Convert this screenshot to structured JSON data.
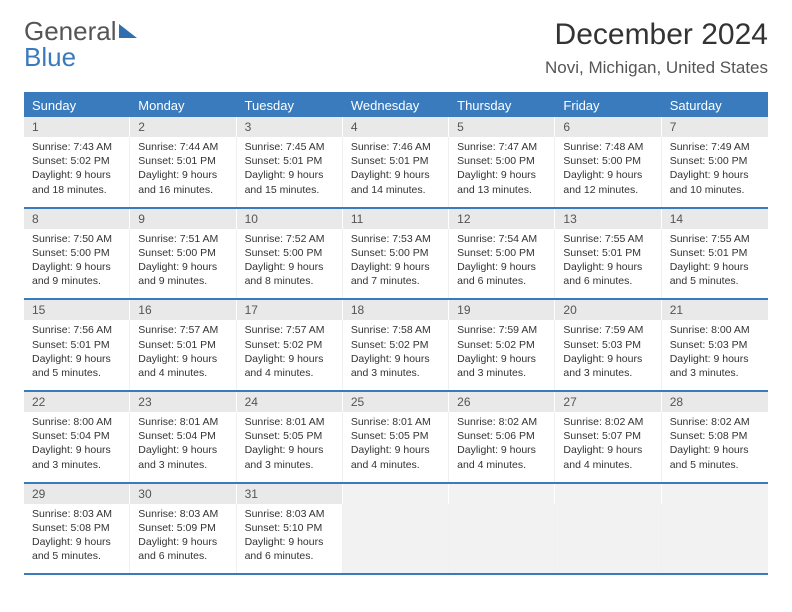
{
  "logo": {
    "line1": "General",
    "line2": "Blue"
  },
  "title": "December 2024",
  "location": "Novi, Michigan, United States",
  "colors": {
    "accent": "#3a7bbd",
    "header_bg": "#3a7bbd",
    "header_text": "#ffffff",
    "daynum_bg": "#e9e9e9",
    "border": "#3a7bbd",
    "empty_bg": "#f2f2f2"
  },
  "days_of_week": [
    "Sunday",
    "Monday",
    "Tuesday",
    "Wednesday",
    "Thursday",
    "Friday",
    "Saturday"
  ],
  "weeks": [
    [
      {
        "n": "1",
        "sunrise": "7:43 AM",
        "sunset": "5:02 PM",
        "dl": "9 hours and 18 minutes."
      },
      {
        "n": "2",
        "sunrise": "7:44 AM",
        "sunset": "5:01 PM",
        "dl": "9 hours and 16 minutes."
      },
      {
        "n": "3",
        "sunrise": "7:45 AM",
        "sunset": "5:01 PM",
        "dl": "9 hours and 15 minutes."
      },
      {
        "n": "4",
        "sunrise": "7:46 AM",
        "sunset": "5:01 PM",
        "dl": "9 hours and 14 minutes."
      },
      {
        "n": "5",
        "sunrise": "7:47 AM",
        "sunset": "5:00 PM",
        "dl": "9 hours and 13 minutes."
      },
      {
        "n": "6",
        "sunrise": "7:48 AM",
        "sunset": "5:00 PM",
        "dl": "9 hours and 12 minutes."
      },
      {
        "n": "7",
        "sunrise": "7:49 AM",
        "sunset": "5:00 PM",
        "dl": "9 hours and 10 minutes."
      }
    ],
    [
      {
        "n": "8",
        "sunrise": "7:50 AM",
        "sunset": "5:00 PM",
        "dl": "9 hours and 9 minutes."
      },
      {
        "n": "9",
        "sunrise": "7:51 AM",
        "sunset": "5:00 PM",
        "dl": "9 hours and 9 minutes."
      },
      {
        "n": "10",
        "sunrise": "7:52 AM",
        "sunset": "5:00 PM",
        "dl": "9 hours and 8 minutes."
      },
      {
        "n": "11",
        "sunrise": "7:53 AM",
        "sunset": "5:00 PM",
        "dl": "9 hours and 7 minutes."
      },
      {
        "n": "12",
        "sunrise": "7:54 AM",
        "sunset": "5:00 PM",
        "dl": "9 hours and 6 minutes."
      },
      {
        "n": "13",
        "sunrise": "7:55 AM",
        "sunset": "5:01 PM",
        "dl": "9 hours and 6 minutes."
      },
      {
        "n": "14",
        "sunrise": "7:55 AM",
        "sunset": "5:01 PM",
        "dl": "9 hours and 5 minutes."
      }
    ],
    [
      {
        "n": "15",
        "sunrise": "7:56 AM",
        "sunset": "5:01 PM",
        "dl": "9 hours and 5 minutes."
      },
      {
        "n": "16",
        "sunrise": "7:57 AM",
        "sunset": "5:01 PM",
        "dl": "9 hours and 4 minutes."
      },
      {
        "n": "17",
        "sunrise": "7:57 AM",
        "sunset": "5:02 PM",
        "dl": "9 hours and 4 minutes."
      },
      {
        "n": "18",
        "sunrise": "7:58 AM",
        "sunset": "5:02 PM",
        "dl": "9 hours and 3 minutes."
      },
      {
        "n": "19",
        "sunrise": "7:59 AM",
        "sunset": "5:02 PM",
        "dl": "9 hours and 3 minutes."
      },
      {
        "n": "20",
        "sunrise": "7:59 AM",
        "sunset": "5:03 PM",
        "dl": "9 hours and 3 minutes."
      },
      {
        "n": "21",
        "sunrise": "8:00 AM",
        "sunset": "5:03 PM",
        "dl": "9 hours and 3 minutes."
      }
    ],
    [
      {
        "n": "22",
        "sunrise": "8:00 AM",
        "sunset": "5:04 PM",
        "dl": "9 hours and 3 minutes."
      },
      {
        "n": "23",
        "sunrise": "8:01 AM",
        "sunset": "5:04 PM",
        "dl": "9 hours and 3 minutes."
      },
      {
        "n": "24",
        "sunrise": "8:01 AM",
        "sunset": "5:05 PM",
        "dl": "9 hours and 3 minutes."
      },
      {
        "n": "25",
        "sunrise": "8:01 AM",
        "sunset": "5:05 PM",
        "dl": "9 hours and 4 minutes."
      },
      {
        "n": "26",
        "sunrise": "8:02 AM",
        "sunset": "5:06 PM",
        "dl": "9 hours and 4 minutes."
      },
      {
        "n": "27",
        "sunrise": "8:02 AM",
        "sunset": "5:07 PM",
        "dl": "9 hours and 4 minutes."
      },
      {
        "n": "28",
        "sunrise": "8:02 AM",
        "sunset": "5:08 PM",
        "dl": "9 hours and 5 minutes."
      }
    ],
    [
      {
        "n": "29",
        "sunrise": "8:03 AM",
        "sunset": "5:08 PM",
        "dl": "9 hours and 5 minutes."
      },
      {
        "n": "30",
        "sunrise": "8:03 AM",
        "sunset": "5:09 PM",
        "dl": "9 hours and 6 minutes."
      },
      {
        "n": "31",
        "sunrise": "8:03 AM",
        "sunset": "5:10 PM",
        "dl": "9 hours and 6 minutes."
      },
      null,
      null,
      null,
      null
    ]
  ],
  "labels": {
    "sunrise": "Sunrise: ",
    "sunset": "Sunset: ",
    "daylight": "Daylight: "
  },
  "typography": {
    "title_fontsize": 30,
    "location_fontsize": 17,
    "dow_fontsize": 13,
    "cell_fontsize": 10.5
  }
}
